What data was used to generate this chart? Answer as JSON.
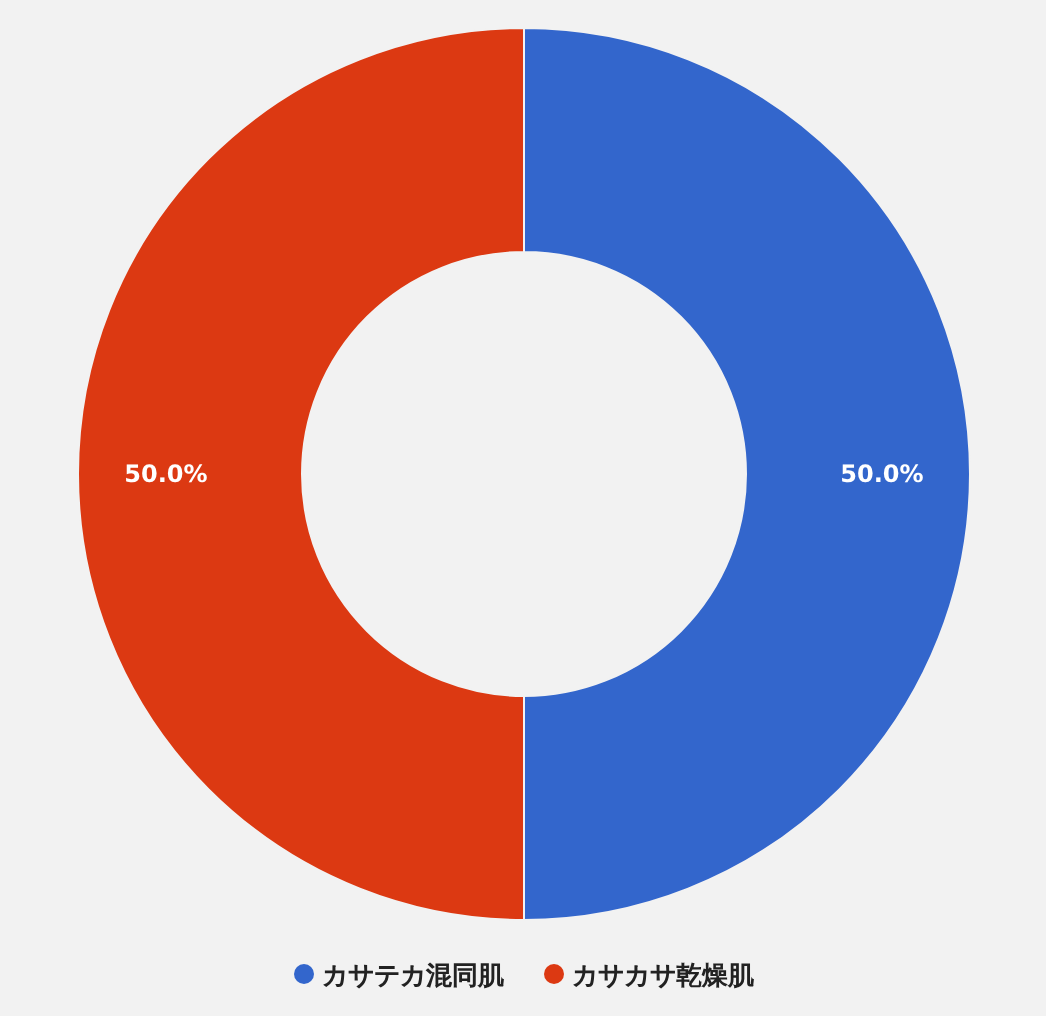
{
  "chart_data": {
    "type": "donut",
    "categories": [
      "カサテカ混同肌",
      "カサカサ乾燥肌"
    ],
    "values": [
      50,
      50
    ],
    "colors": [
      "#3366cc",
      "#dc3912"
    ],
    "value_labels": [
      "50.0%",
      "50.0%"
    ],
    "legend": "bottom"
  }
}
